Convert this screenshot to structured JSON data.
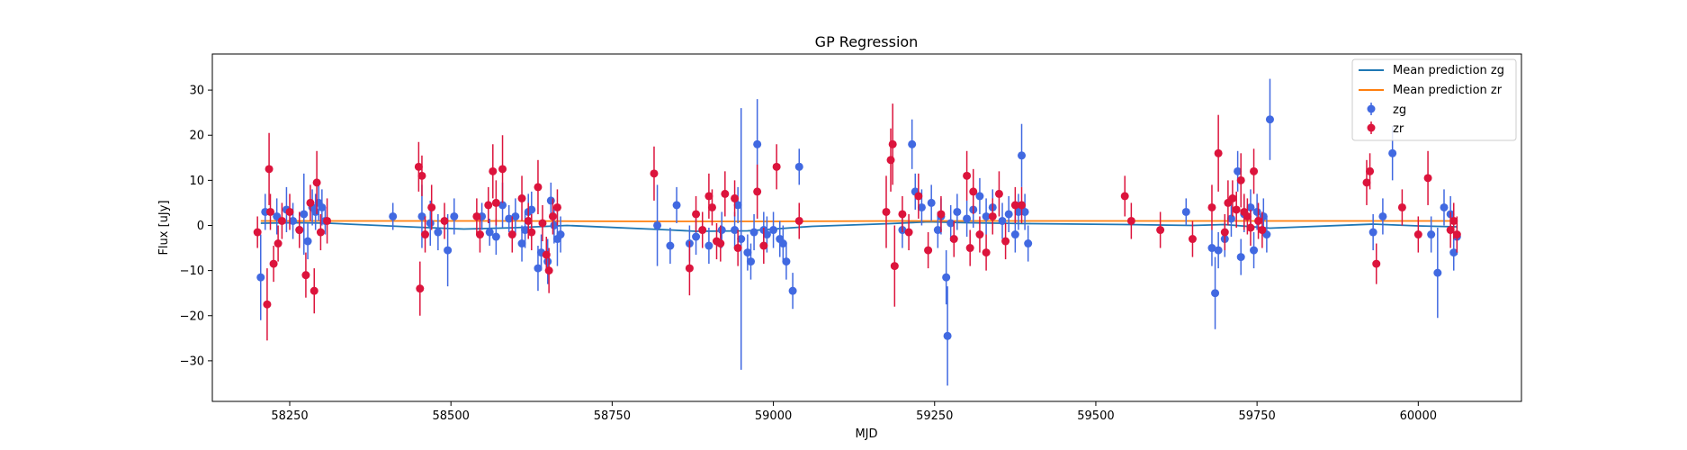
{
  "chart_data": {
    "type": "scatter",
    "title": "GP Regression",
    "xlabel": "MJD",
    "ylabel": "Flux [uJy]",
    "xlim": [
      58130,
      60160
    ],
    "ylim": [
      -39,
      38
    ],
    "xticks": [
      58250,
      58500,
      58750,
      59000,
      59250,
      59500,
      59750,
      60000
    ],
    "yticks": [
      -30,
      -20,
      -10,
      0,
      10,
      20,
      30
    ],
    "grid": false,
    "legend_position": "top-right",
    "lines": [
      {
        "name": "Mean prediction zg",
        "color": "#1f77b4",
        "x": [
          58205,
          58260,
          58310,
          58450,
          58520,
          58600,
          58680,
          58840,
          58880,
          58960,
          59060,
          59180,
          59240,
          59300,
          59400,
          59550,
          59650,
          59700,
          59770,
          59930,
          60000,
          60060
        ],
        "y": [
          0.5,
          0.6,
          0.5,
          -0.4,
          -0.8,
          -0.5,
          0.0,
          -1.0,
          -1.3,
          -1.2,
          -0.2,
          0.4,
          0.8,
          0.6,
          0.4,
          0.2,
          0.0,
          0.2,
          -0.6,
          0.3,
          -0.1,
          -0.3
        ]
      },
      {
        "name": "Mean prediction zr",
        "color": "#ff7f0e",
        "x": [
          58205,
          58400,
          58600,
          58800,
          59000,
          59200,
          59400,
          59600,
          59800,
          60000,
          60060
        ],
        "y": [
          1.0,
          1.0,
          1.0,
          0.9,
          0.9,
          1.0,
          1.0,
          1.0,
          1.0,
          1.0,
          1.0
        ]
      }
    ],
    "series": [
      {
        "name": "zg",
        "color": "#4169e1",
        "x": [
          58205,
          58212,
          58230,
          58245,
          58255,
          58265,
          58272,
          58278,
          58285,
          58290,
          58295,
          58300,
          58305,
          58410,
          58455,
          58468,
          58480,
          58495,
          58505,
          58548,
          58560,
          58570,
          58580,
          58590,
          58600,
          58610,
          58615,
          58620,
          58625,
          58635,
          58640,
          58650,
          58655,
          58660,
          58665,
          58670,
          58820,
          58840,
          58850,
          58870,
          58880,
          58900,
          58920,
          58940,
          58945,
          58950,
          58960,
          58965,
          58970,
          58975,
          58985,
          58990,
          59000,
          59010,
          59015,
          59020,
          59030,
          59040,
          59200,
          59215,
          59220,
          59230,
          59245,
          59255,
          59260,
          59268,
          59270,
          59275,
          59285,
          59300,
          59310,
          59320,
          59330,
          59340,
          59355,
          59365,
          59375,
          59380,
          59385,
          59390,
          59395,
          59640,
          59680,
          59685,
          59690,
          59700,
          59710,
          59720,
          59725,
          59730,
          59740,
          59745,
          59750,
          59760,
          59765,
          59770,
          59930,
          59945,
          59960,
          60020,
          60030,
          60040,
          60050,
          60055,
          60060
        ],
        "y": [
          -11.5,
          3.0,
          2.0,
          3.5,
          1.0,
          -1.0,
          2.5,
          -3.5,
          4.0,
          3.0,
          5.0,
          4.0,
          1.0,
          2.0,
          2.0,
          0.5,
          -1.5,
          -5.5,
          2.0,
          2.0,
          -1.5,
          -2.5,
          4.5,
          1.5,
          2.0,
          -4.0,
          -1.0,
          3.0,
          3.5,
          -9.5,
          -6.0,
          -8.0,
          5.5,
          0.0,
          -3.0,
          -2.0,
          0.0,
          -4.5,
          4.5,
          -4.0,
          -2.5,
          -4.5,
          -1.0,
          -1.0,
          4.5,
          -3.0,
          -6.0,
          -8.0,
          -1.5,
          18.0,
          -1.0,
          -2.0,
          -1.0,
          -3.0,
          -4.0,
          -8.0,
          -14.5,
          13.0,
          -1.0,
          18.0,
          7.5,
          4.0,
          5.0,
          -1.0,
          2.0,
          -11.5,
          -24.5,
          0.5,
          3.0,
          1.5,
          3.5,
          6.5,
          2.0,
          4.0,
          1.0,
          2.5,
          -2.0,
          3.0,
          15.5,
          3.0,
          -4.0,
          3.0,
          -5.0,
          -15.0,
          -5.5,
          -3.0,
          1.5,
          12.0,
          -7.0,
          2.5,
          4.0,
          -5.5,
          3.0,
          2.0,
          -2.0,
          23.5,
          -1.5,
          2.0,
          16.0,
          -2.0,
          -10.5,
          4.0,
          2.5,
          -6.0,
          -2.5
        ],
        "yerr": [
          9.5,
          4.0,
          4.0,
          5.0,
          4.0,
          4.0,
          9.0,
          4.0,
          4.0,
          4.0,
          4.0,
          4.0,
          3.0,
          3.0,
          7.0,
          5.0,
          4.0,
          8.0,
          4.0,
          3.0,
          3.0,
          4.0,
          5.0,
          3.0,
          4.0,
          4.0,
          4.0,
          4.0,
          4.0,
          5.0,
          4.0,
          5.0,
          4.0,
          4.0,
          6.0,
          4.0,
          9.0,
          4.0,
          4.0,
          4.0,
          4.0,
          4.0,
          4.0,
          4.0,
          4.0,
          29.0,
          4.0,
          4.0,
          4.0,
          10.0,
          4.0,
          4.0,
          4.0,
          4.0,
          4.0,
          4.0,
          4.0,
          4.0,
          4.0,
          5.5,
          4.0,
          4.0,
          4.0,
          4.0,
          4.0,
          6.0,
          11.0,
          4.0,
          4.0,
          4.0,
          4.0,
          4.0,
          4.0,
          4.0,
          4.0,
          4.0,
          4.0,
          4.0,
          7.0,
          4.0,
          4.0,
          3.0,
          4.0,
          8.0,
          4.0,
          4.0,
          4.0,
          4.5,
          4.0,
          4.0,
          4.0,
          4.0,
          4.0,
          4.0,
          4.0,
          9.0,
          4.0,
          4.0,
          6.0,
          4.0,
          10.0,
          4.0,
          4.0,
          4.0,
          4.0
        ]
      },
      {
        "name": "zr",
        "color": "#dc143c",
        "x": [
          58200,
          58215,
          58218,
          58220,
          58225,
          58232,
          58238,
          58250,
          58265,
          58275,
          58282,
          58288,
          58292,
          58298,
          58308,
          58450,
          58452,
          58455,
          58460,
          58470,
          58490,
          58540,
          58545,
          58558,
          58565,
          58570,
          58580,
          58595,
          58610,
          58620,
          58625,
          58635,
          58642,
          58648,
          58652,
          58658,
          58665,
          58815,
          58870,
          58880,
          58890,
          58900,
          58905,
          58912,
          58918,
          58925,
          58940,
          58945,
          58975,
          58985,
          59005,
          59040,
          59175,
          59182,
          59185,
          59188,
          59200,
          59210,
          59225,
          59240,
          59260,
          59280,
          59300,
          59305,
          59310,
          59320,
          59330,
          59340,
          59350,
          59360,
          59375,
          59385,
          59545,
          59555,
          59600,
          59650,
          59680,
          59690,
          59700,
          59705,
          59712,
          59718,
          59725,
          59730,
          59735,
          59740,
          59745,
          59752,
          59758,
          59920,
          59925,
          59935,
          59975,
          60000,
          60015,
          60050,
          60055,
          60060
        ],
        "y": [
          -1.5,
          -17.5,
          12.5,
          3.0,
          -8.5,
          -4.0,
          1.0,
          3.0,
          -1.0,
          -11.0,
          5.0,
          -14.5,
          9.5,
          -1.5,
          1.0,
          13.0,
          -14.0,
          11.0,
          -2.0,
          4.0,
          1.0,
          2.0,
          -2.0,
          4.5,
          12.0,
          5.0,
          12.5,
          -2.0,
          6.0,
          1.0,
          -1.5,
          8.5,
          0.5,
          -6.5,
          -10.0,
          2.0,
          4.0,
          11.5,
          -9.5,
          2.5,
          -1.0,
          6.5,
          4.0,
          -3.5,
          -4.0,
          7.0,
          6.0,
          -5.0,
          7.5,
          -4.5,
          13.0,
          1.0,
          3.0,
          14.5,
          18.0,
          -9.0,
          2.5,
          -1.5,
          6.5,
          -5.5,
          2.5,
          -3.0,
          11.0,
          -5.0,
          7.5,
          -2.0,
          -6.0,
          2.0,
          7.0,
          -3.5,
          4.5,
          4.5,
          6.5,
          1.0,
          -1.0,
          -3.0,
          4.0,
          16.0,
          -1.5,
          5.0,
          6.0,
          3.5,
          10.0,
          3.0,
          2.0,
          -0.5,
          12.0,
          1.0,
          -1.0,
          9.5,
          12.0,
          -8.5,
          4.0,
          -2.0,
          10.5,
          -1.0,
          1.0,
          -2.0
        ],
        "yerr": [
          3.5,
          8.0,
          8.0,
          4.0,
          4.0,
          4.0,
          4.0,
          4.0,
          4.0,
          5.0,
          4.0,
          5.0,
          7.0,
          4.0,
          5.0,
          5.5,
          6.0,
          4.5,
          4.0,
          5.0,
          4.0,
          4.0,
          4.0,
          4.0,
          6.0,
          5.0,
          7.5,
          4.0,
          5.0,
          4.0,
          4.0,
          6.0,
          4.0,
          4.0,
          5.0,
          4.0,
          4.0,
          6.0,
          6.0,
          4.0,
          4.0,
          5.0,
          4.0,
          4.0,
          4.0,
          5.0,
          4.0,
          4.0,
          6.0,
          4.0,
          5.0,
          4.0,
          8.0,
          7.0,
          9.0,
          9.0,
          4.0,
          4.0,
          5.0,
          4.0,
          4.0,
          4.0,
          5.5,
          4.0,
          5.0,
          4.0,
          4.0,
          4.0,
          5.0,
          4.0,
          4.0,
          4.0,
          4.5,
          4.0,
          4.0,
          4.0,
          5.0,
          8.5,
          4.0,
          5.0,
          4.0,
          4.0,
          6.0,
          4.0,
          4.0,
          4.0,
          5.0,
          4.0,
          4.0,
          5.0,
          4.0,
          4.5,
          4.0,
          4.0,
          6.0,
          4.0,
          4.0,
          4.0
        ]
      }
    ]
  }
}
